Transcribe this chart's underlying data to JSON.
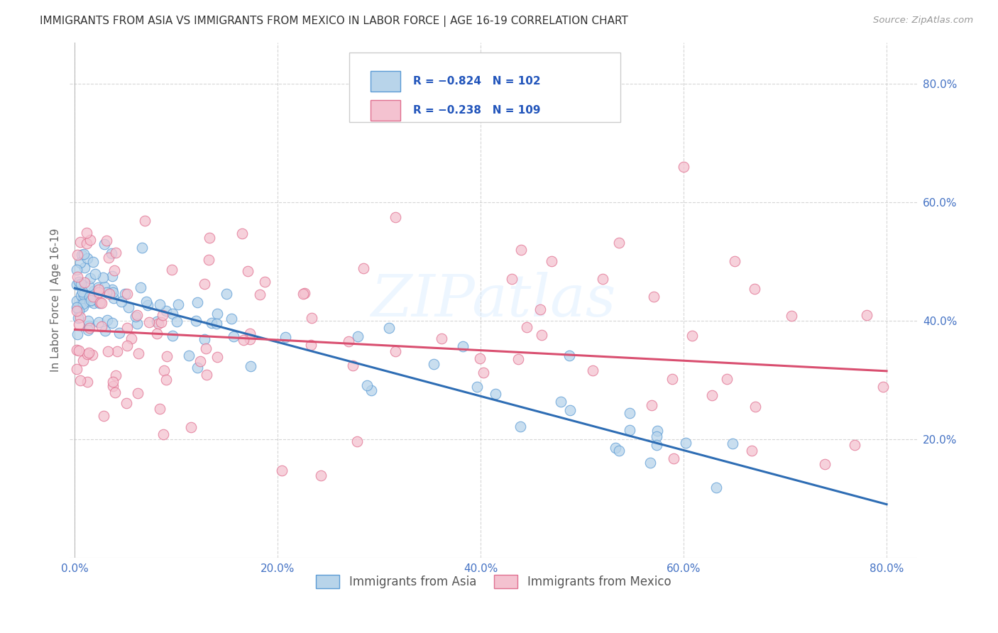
{
  "title": "IMMIGRANTS FROM ASIA VS IMMIGRANTS FROM MEXICO IN LABOR FORCE | AGE 16-19 CORRELATION CHART",
  "source": "Source: ZipAtlas.com",
  "ylabel": "In Labor Force | Age 16-19",
  "xlim": [
    -0.005,
    0.83
  ],
  "ylim": [
    0.0,
    0.87
  ],
  "x_ticks": [
    0.0,
    0.2,
    0.4,
    0.6,
    0.8
  ],
  "y_ticks": [
    0.2,
    0.4,
    0.6,
    0.8
  ],
  "asia_color": "#b8d4ea",
  "asia_edge_color": "#5b9bd5",
  "mexico_color": "#f4c2d0",
  "mexico_edge_color": "#e07090",
  "trend_asia_color": "#2e6db4",
  "trend_mexico_color": "#d94f70",
  "tick_color": "#4472c4",
  "legend_color": "#2255bb",
  "bottom_legend_asia": "Immigrants from Asia",
  "bottom_legend_mexico": "Immigrants from Mexico",
  "background_color": "#ffffff",
  "grid_color": "#cccccc",
  "title_color": "#333333",
  "watermark": "ZIPatlas",
  "asia_trend_x0": 0.0,
  "asia_trend_y0": 0.455,
  "asia_trend_x1": 0.8,
  "asia_trend_y1": 0.09,
  "mexico_trend_x0": 0.0,
  "mexico_trend_y0": 0.385,
  "mexico_trend_x1": 0.8,
  "mexico_trend_y1": 0.315
}
